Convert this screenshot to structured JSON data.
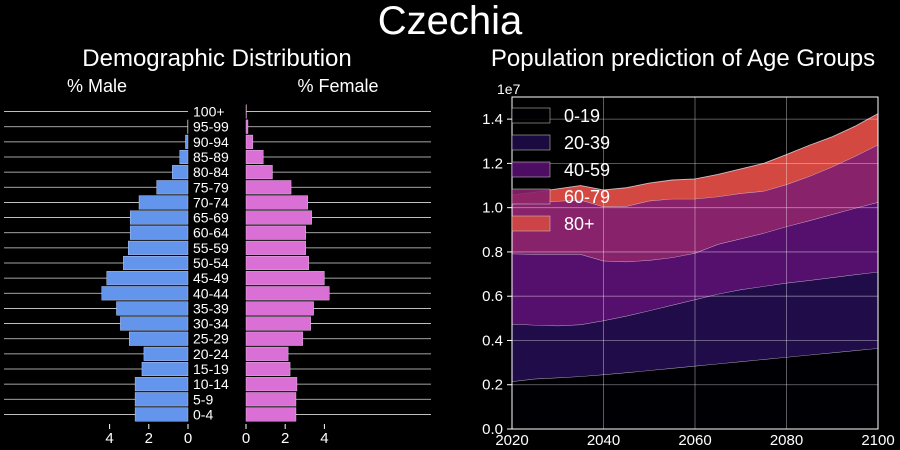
{
  "figure": {
    "title": "Czechia"
  },
  "colors": {
    "background": "#000000",
    "male": "#6495ED",
    "female": "#DA70D6",
    "grid": "#ffffff",
    "text": "#ffffff"
  },
  "chart_data": [
    {
      "type": "bar",
      "orientation": "horizontal-pyramid",
      "title": "Demographic Distribution",
      "left_title": "% Male",
      "right_title": "% Female",
      "categories": [
        "0-4",
        "5-9",
        "10-14",
        "15-19",
        "20-24",
        "25-29",
        "30-34",
        "35-39",
        "40-44",
        "45-49",
        "50-54",
        "55-59",
        "60-64",
        "65-69",
        "70-74",
        "75-79",
        "80-84",
        "85-89",
        "90-94",
        "95-99",
        "100+"
      ],
      "male": [
        2.7,
        2.7,
        2.7,
        2.35,
        2.25,
        3.0,
        3.45,
        3.65,
        4.4,
        4.15,
        3.3,
        3.05,
        2.95,
        2.95,
        2.5,
        1.6,
        0.8,
        0.42,
        0.13,
        0.02,
        0.0
      ],
      "female": [
        2.55,
        2.55,
        2.6,
        2.25,
        2.15,
        2.9,
        3.3,
        3.45,
        4.25,
        4.0,
        3.2,
        3.05,
        3.05,
        3.35,
        3.15,
        2.3,
        1.35,
        0.88,
        0.35,
        0.1,
        0.02
      ],
      "xlim": [
        0,
        4.8
      ],
      "male_ticks": [
        "4",
        "2",
        "0"
      ],
      "female_ticks": [
        "0",
        "2",
        "4"
      ],
      "grid": true
    },
    {
      "type": "area",
      "stacked": true,
      "title": "Population prediction of Age Groups",
      "y_offset_label": "1e7",
      "x": [
        2020,
        2025,
        2030,
        2035,
        2040,
        2045,
        2050,
        2055,
        2060,
        2065,
        2070,
        2075,
        2080,
        2085,
        2090,
        2095,
        2100
      ],
      "ylim": [
        0,
        1.5
      ],
      "xlim": [
        2020,
        2100
      ],
      "xticks": [
        "2020",
        "2040",
        "2060",
        "2080",
        "2100"
      ],
      "yticks": [
        "0.0",
        "0.2",
        "0.4",
        "0.6",
        "0.8",
        "1.0",
        "1.2",
        "1.4"
      ],
      "legend_position": "top-left",
      "grid": true,
      "series": [
        {
          "name": "0-19",
          "color": "#000004",
          "values": [
            0.215,
            0.227,
            0.232,
            0.238,
            0.246,
            0.255,
            0.265,
            0.275,
            0.285,
            0.295,
            0.305,
            0.315,
            0.325,
            0.335,
            0.345,
            0.355,
            0.365
          ]
        },
        {
          "name": "20-39",
          "color": "#1f0c48",
          "values": [
            0.26,
            0.243,
            0.235,
            0.234,
            0.244,
            0.256,
            0.27,
            0.285,
            0.3,
            0.315,
            0.325,
            0.33,
            0.335,
            0.337,
            0.34,
            0.343,
            0.345
          ]
        },
        {
          "name": "40-59",
          "color": "#550f6d",
          "values": [
            0.317,
            0.32,
            0.323,
            0.318,
            0.27,
            0.245,
            0.228,
            0.215,
            0.21,
            0.225,
            0.23,
            0.24,
            0.255,
            0.27,
            0.285,
            0.3,
            0.315
          ]
        },
        {
          "name": "60-79",
          "color": "#88226a",
          "values": [
            0.225,
            0.235,
            0.24,
            0.245,
            0.245,
            0.251,
            0.268,
            0.265,
            0.245,
            0.215,
            0.205,
            0.19,
            0.19,
            0.2,
            0.215,
            0.235,
            0.26
          ]
        },
        {
          "name": "80+",
          "color": "#d44842",
          "values": [
            0.04,
            0.045,
            0.055,
            0.065,
            0.075,
            0.083,
            0.08,
            0.085,
            0.09,
            0.1,
            0.11,
            0.125,
            0.135,
            0.14,
            0.135,
            0.135,
            0.14
          ]
        }
      ]
    }
  ]
}
